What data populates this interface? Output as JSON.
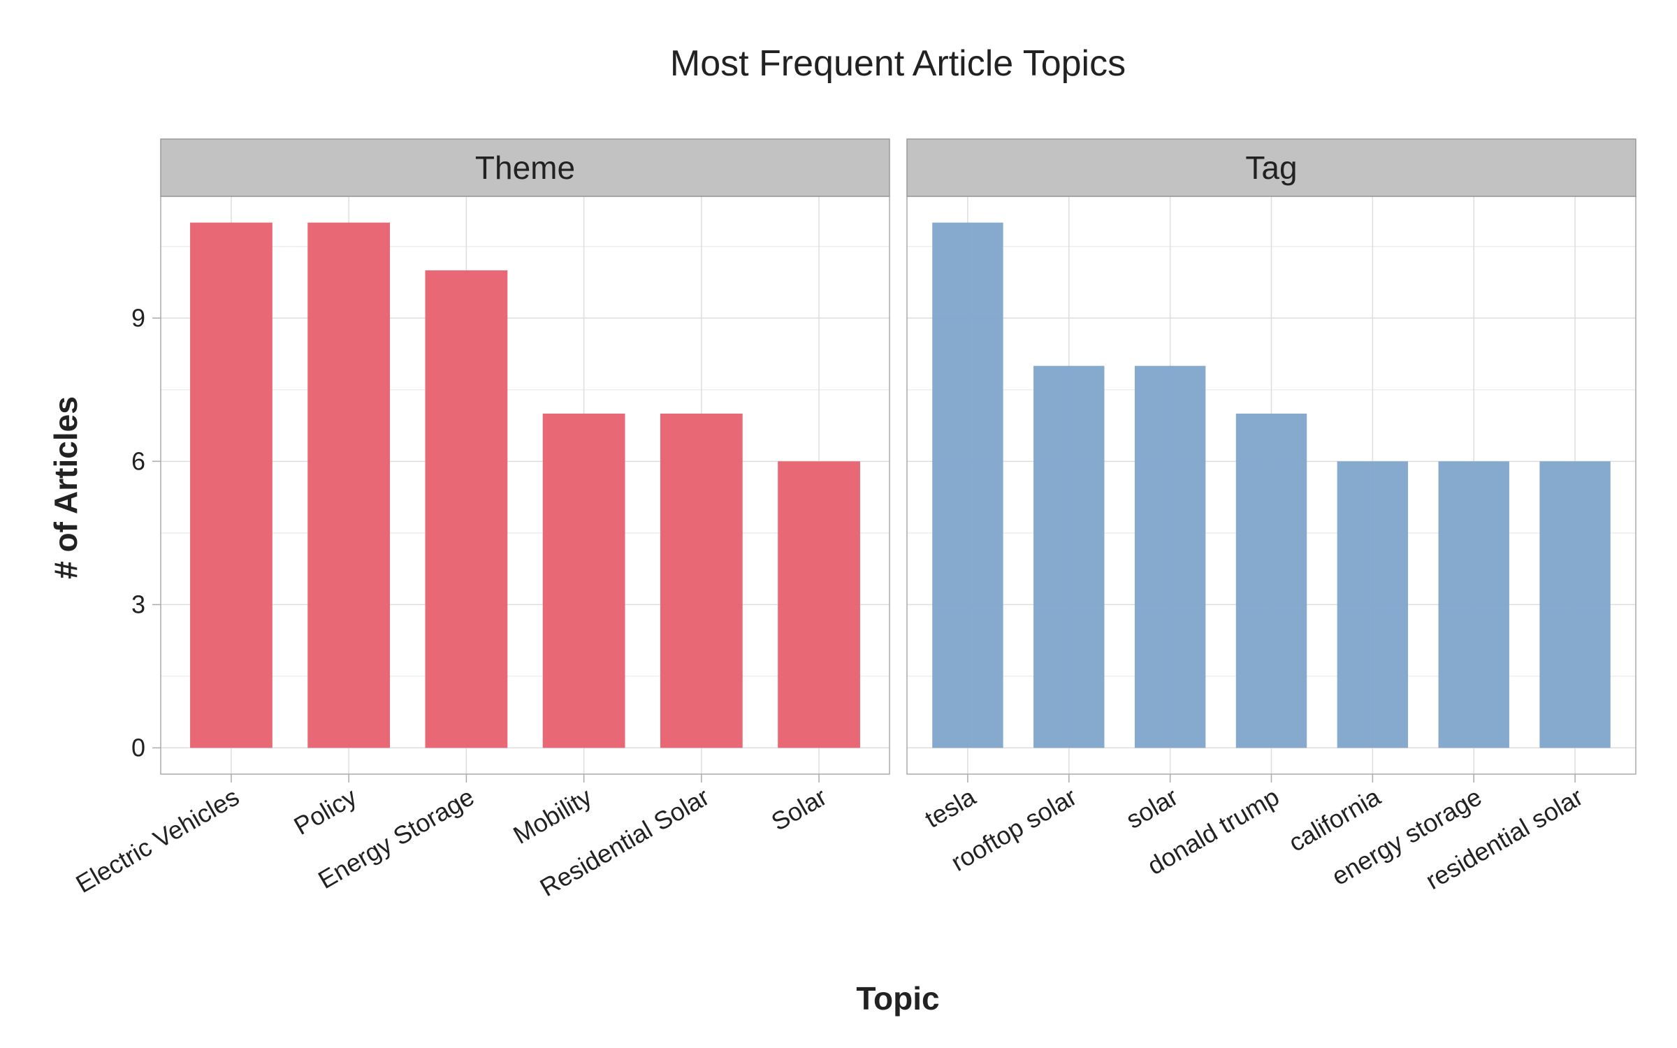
{
  "chart_data": {
    "type": "bar",
    "title": "Most Frequent Article Topics",
    "xlabel": "Topic",
    "ylabel": "# of Articles",
    "ylim": [
      -0.55,
      11.55
    ],
    "yticks": [
      0,
      3,
      6,
      9
    ],
    "grid": true,
    "facets": [
      {
        "name": "Theme",
        "color": "#E8606F",
        "categories": [
          "Electric Vehicles",
          "Policy",
          "Energy Storage",
          "Mobility",
          "Residential Solar",
          "Solar"
        ],
        "values": [
          11,
          11,
          10,
          7,
          7,
          6
        ]
      },
      {
        "name": "Tag",
        "color": "#7FA4CB",
        "categories": [
          "tesla",
          "rooftop solar",
          "solar",
          "donald trump",
          "california",
          "energy storage",
          "residential solar"
        ],
        "values": [
          11,
          8,
          8,
          7,
          6,
          6,
          6
        ]
      }
    ]
  }
}
